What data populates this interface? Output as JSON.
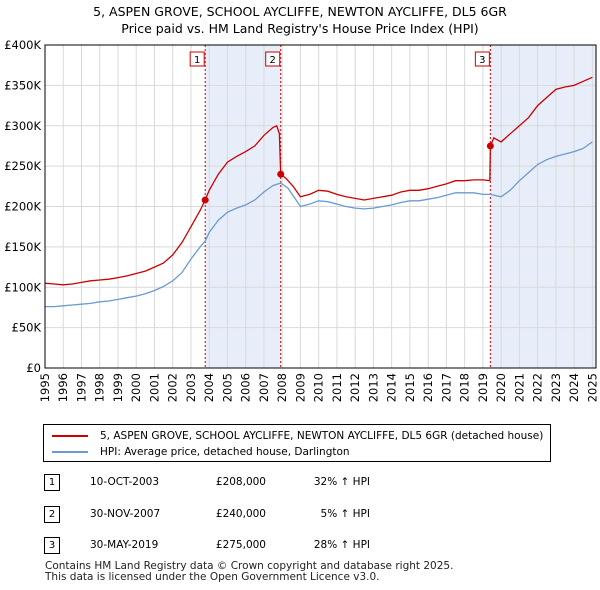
{
  "header": {
    "title_line1": "5, ASPEN GROVE, SCHOOL AYCLIFFE, NEWTON AYCLIFFE, DL5 6GR",
    "title_line2": "Price paid vs. HM Land Registry's House Price Index (HPI)"
  },
  "colors": {
    "property_line": "#cc0000",
    "hpi_line": "#6a9bd1",
    "shade": "#e8eef9",
    "grid": "#d9d9d9"
  },
  "chart_data": {
    "type": "line",
    "x_range": [
      1995,
      2025.2
    ],
    "y_range": [
      0,
      400000
    ],
    "y_ticks": [
      {
        "value": 0,
        "label": "£0"
      },
      {
        "value": 50000,
        "label": "£50K"
      },
      {
        "value": 100000,
        "label": "£100K"
      },
      {
        "value": 150000,
        "label": "£150K"
      },
      {
        "value": 200000,
        "label": "£200K"
      },
      {
        "value": 250000,
        "label": "£250K"
      },
      {
        "value": 300000,
        "label": "£300K"
      },
      {
        "value": 350000,
        "label": "£350K"
      },
      {
        "value": 400000,
        "label": "£400K"
      }
    ],
    "x_ticks": [
      "1995",
      "1996",
      "1997",
      "1998",
      "1999",
      "2000",
      "2001",
      "2002",
      "2003",
      "2004",
      "2005",
      "2006",
      "2007",
      "2008",
      "2009",
      "2010",
      "2011",
      "2012",
      "2013",
      "2014",
      "2015",
      "2016",
      "2017",
      "2018",
      "2019",
      "2020",
      "2021",
      "2022",
      "2023",
      "2024",
      "2025"
    ],
    "shaded_ranges": [
      [
        2003.78,
        2007.92
      ],
      [
        2019.41,
        2025.2
      ]
    ],
    "series": [
      {
        "name": "5, ASPEN GROVE, SCHOOL AYCLIFFE, NEWTON AYCLIFFE, DL5 6GR (detached house)",
        "color": "#cc0000",
        "points": [
          [
            1995,
            105000
          ],
          [
            1995.5,
            104000
          ],
          [
            1996,
            103000
          ],
          [
            1996.5,
            104000
          ],
          [
            1997,
            106000
          ],
          [
            1997.5,
            108000
          ],
          [
            1998,
            109000
          ],
          [
            1998.5,
            110000
          ],
          [
            1999,
            112000
          ],
          [
            1999.5,
            114000
          ],
          [
            2000,
            117000
          ],
          [
            2000.5,
            120000
          ],
          [
            2001,
            125000
          ],
          [
            2001.5,
            130000
          ],
          [
            2002,
            140000
          ],
          [
            2002.5,
            155000
          ],
          [
            2003,
            175000
          ],
          [
            2003.5,
            195000
          ],
          [
            2003.78,
            208000
          ],
          [
            2004,
            220000
          ],
          [
            2004.5,
            240000
          ],
          [
            2005,
            255000
          ],
          [
            2005.5,
            262000
          ],
          [
            2006,
            268000
          ],
          [
            2006.5,
            275000
          ],
          [
            2007,
            288000
          ],
          [
            2007.5,
            298000
          ],
          [
            2007.7,
            300000
          ],
          [
            2007.85,
            290000
          ],
          [
            2007.92,
            240000
          ],
          [
            2008.2,
            235000
          ],
          [
            2008.6,
            225000
          ],
          [
            2009,
            212000
          ],
          [
            2009.5,
            215000
          ],
          [
            2010,
            220000
          ],
          [
            2010.5,
            219000
          ],
          [
            2011,
            215000
          ],
          [
            2011.5,
            212000
          ],
          [
            2012,
            210000
          ],
          [
            2012.5,
            208000
          ],
          [
            2013,
            210000
          ],
          [
            2013.5,
            212000
          ],
          [
            2014,
            214000
          ],
          [
            2014.5,
            218000
          ],
          [
            2015,
            220000
          ],
          [
            2015.5,
            220000
          ],
          [
            2016,
            222000
          ],
          [
            2016.5,
            225000
          ],
          [
            2017,
            228000
          ],
          [
            2017.5,
            232000
          ],
          [
            2018,
            232000
          ],
          [
            2018.5,
            233000
          ],
          [
            2019,
            233000
          ],
          [
            2019.38,
            232000
          ],
          [
            2019.41,
            275000
          ],
          [
            2019.6,
            285000
          ],
          [
            2020,
            280000
          ],
          [
            2020.5,
            290000
          ],
          [
            2021,
            300000
          ],
          [
            2021.5,
            310000
          ],
          [
            2022,
            325000
          ],
          [
            2022.5,
            335000
          ],
          [
            2023,
            345000
          ],
          [
            2023.5,
            348000
          ],
          [
            2024,
            350000
          ],
          [
            2024.5,
            355000
          ],
          [
            2025,
            360000
          ]
        ]
      },
      {
        "name": "HPI: Average price, detached house, Darlington",
        "color": "#6a9bd1",
        "points": [
          [
            1995,
            76000
          ],
          [
            1995.5,
            76000
          ],
          [
            1996,
            77000
          ],
          [
            1996.5,
            78000
          ],
          [
            1997,
            79000
          ],
          [
            1997.5,
            80000
          ],
          [
            1998,
            82000
          ],
          [
            1998.5,
            83000
          ],
          [
            1999,
            85000
          ],
          [
            1999.5,
            87000
          ],
          [
            2000,
            89000
          ],
          [
            2000.5,
            92000
          ],
          [
            2001,
            96000
          ],
          [
            2001.5,
            101000
          ],
          [
            2002,
            108000
          ],
          [
            2002.5,
            118000
          ],
          [
            2003,
            135000
          ],
          [
            2003.5,
            150000
          ],
          [
            2003.78,
            157000
          ],
          [
            2004,
            168000
          ],
          [
            2004.5,
            183000
          ],
          [
            2005,
            193000
          ],
          [
            2005.5,
            198000
          ],
          [
            2006,
            202000
          ],
          [
            2006.5,
            208000
          ],
          [
            2007,
            218000
          ],
          [
            2007.5,
            226000
          ],
          [
            2007.92,
            229000
          ],
          [
            2008.3,
            223000
          ],
          [
            2008.7,
            210000
          ],
          [
            2009,
            200000
          ],
          [
            2009.5,
            203000
          ],
          [
            2010,
            207000
          ],
          [
            2010.5,
            206000
          ],
          [
            2011,
            203000
          ],
          [
            2011.5,
            200000
          ],
          [
            2012,
            198000
          ],
          [
            2012.5,
            197000
          ],
          [
            2013,
            198000
          ],
          [
            2013.5,
            200000
          ],
          [
            2014,
            202000
          ],
          [
            2014.5,
            205000
          ],
          [
            2015,
            207000
          ],
          [
            2015.5,
            207000
          ],
          [
            2016,
            209000
          ],
          [
            2016.5,
            211000
          ],
          [
            2017,
            214000
          ],
          [
            2017.5,
            217000
          ],
          [
            2018,
            217000
          ],
          [
            2018.5,
            217000
          ],
          [
            2019,
            215000
          ],
          [
            2019.41,
            215000
          ],
          [
            2020,
            212000
          ],
          [
            2020.5,
            220000
          ],
          [
            2021,
            232000
          ],
          [
            2021.5,
            242000
          ],
          [
            2022,
            252000
          ],
          [
            2022.5,
            258000
          ],
          [
            2023,
            262000
          ],
          [
            2023.5,
            265000
          ],
          [
            2024,
            268000
          ],
          [
            2024.5,
            272000
          ],
          [
            2025,
            280000
          ]
        ]
      }
    ],
    "sale_markers": [
      {
        "label": "1",
        "x": 2003.78,
        "y": 208000
      },
      {
        "label": "2",
        "x": 2007.92,
        "y": 240000
      },
      {
        "label": "3",
        "x": 2019.41,
        "y": 275000
      }
    ]
  },
  "legend": {
    "property_label": "5, ASPEN GROVE, SCHOOL AYCLIFFE, NEWTON AYCLIFFE, DL5 6GR (detached house)",
    "hpi_label": "HPI: Average price, detached house, Darlington"
  },
  "sales": [
    {
      "num": "1",
      "date": "10-OCT-2003",
      "price": "£208,000",
      "hpi": "32% ↑ HPI"
    },
    {
      "num": "2",
      "date": "30-NOV-2007",
      "price": "£240,000",
      "hpi": "5% ↑ HPI"
    },
    {
      "num": "3",
      "date": "30-MAY-2019",
      "price": "£275,000",
      "hpi": "28% ↑ HPI"
    }
  ],
  "footer": {
    "line1": "Contains HM Land Registry data © Crown copyright and database right 2025.",
    "line2": "This data is licensed under the Open Government Licence v3.0."
  }
}
